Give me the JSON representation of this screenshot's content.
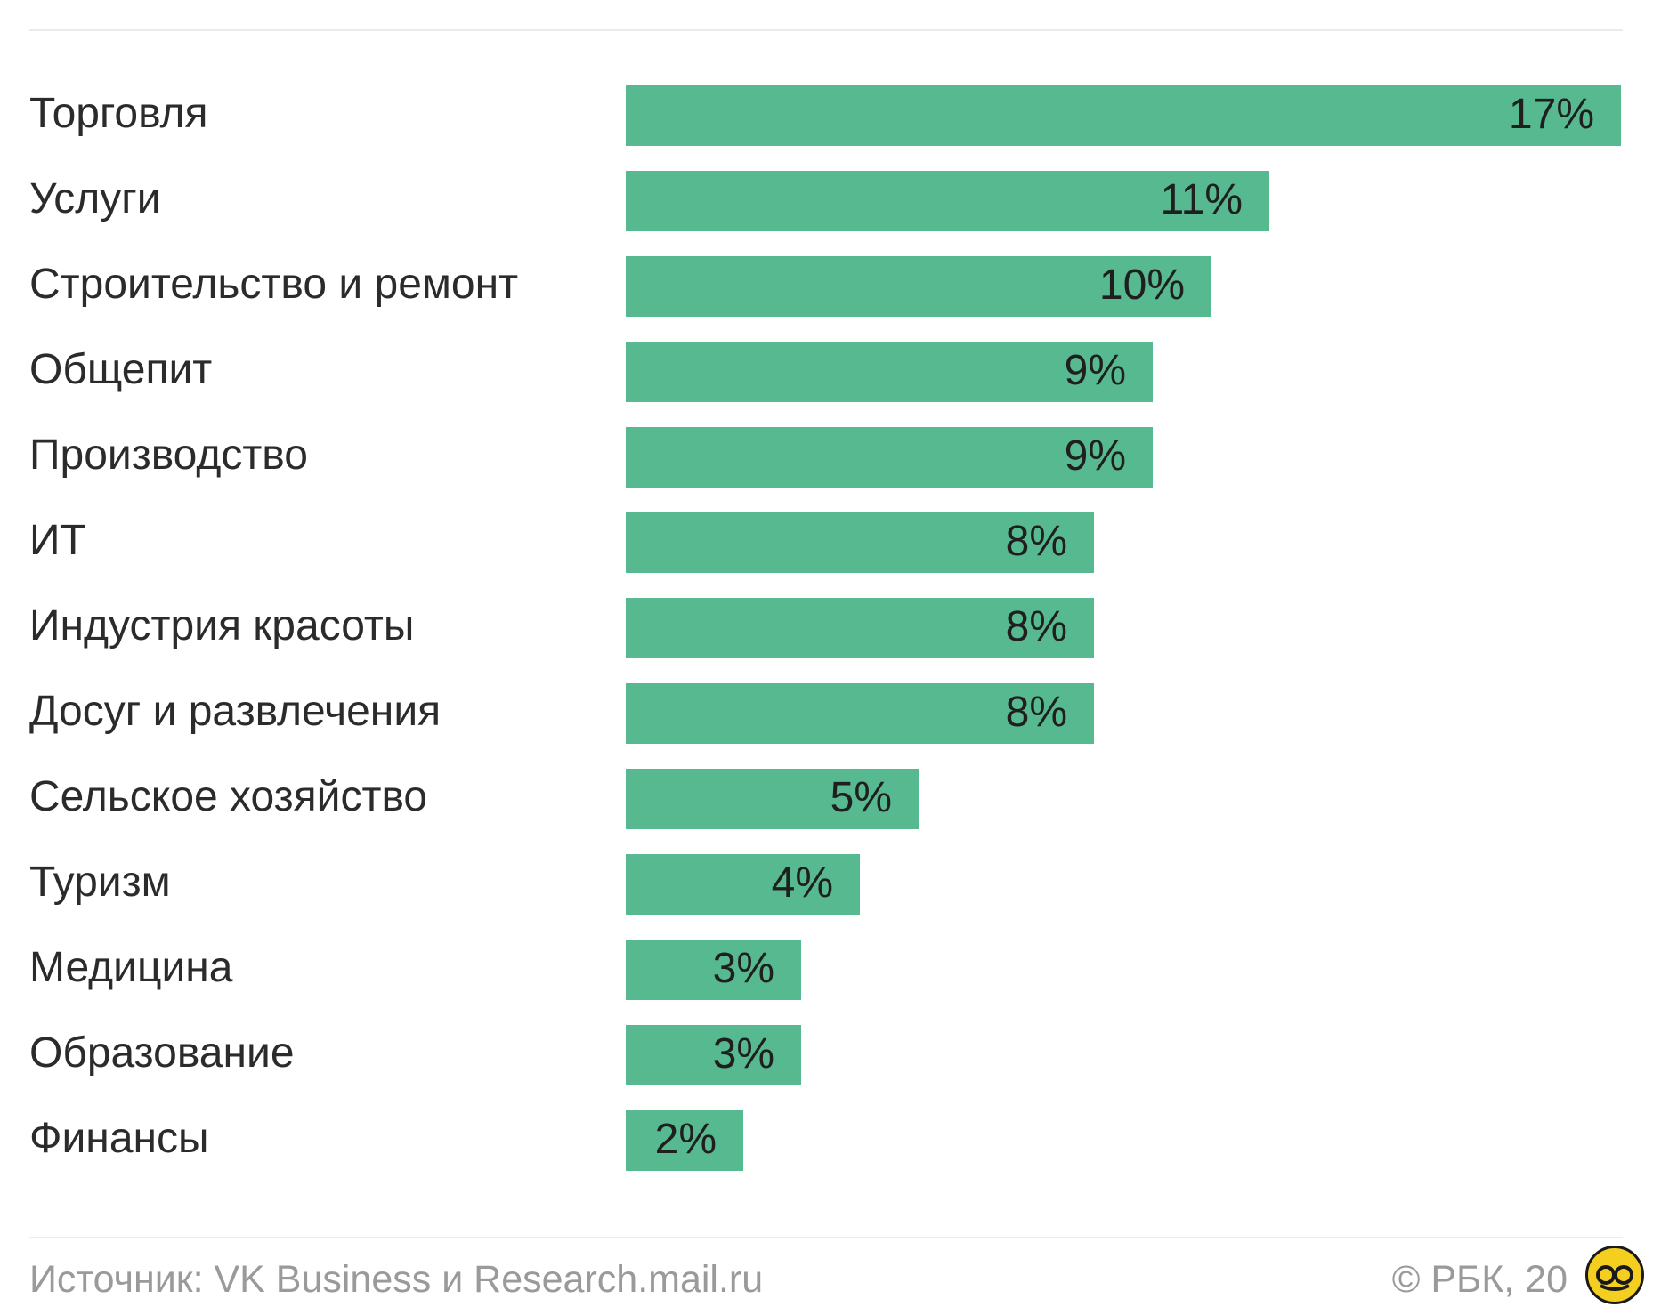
{
  "chart_data": {
    "type": "bar",
    "orientation": "horizontal",
    "categories": [
      "Торговля",
      "Услуги",
      "Строительство и ремонт",
      "Общепит",
      "Производство",
      "ИТ",
      "Индустрия красоты",
      "Досуг и развлечения",
      "Сельское хозяйство",
      "Туризм",
      "Медицина",
      "Образование",
      "Финансы"
    ],
    "values": [
      17,
      11,
      10,
      9,
      9,
      8,
      8,
      8,
      5,
      4,
      3,
      3,
      2
    ],
    "value_labels": [
      "17%",
      "11%",
      "10%",
      "9%",
      "9%",
      "8%",
      "8%",
      "8%",
      "5%",
      "4%",
      "3%",
      "3%",
      "2%"
    ],
    "unit": "%",
    "xlim": [
      0,
      17
    ],
    "grid": false,
    "bar_color": "#56b98f"
  },
  "footer": {
    "source": "Источник: VK Business и Research.mail.ru",
    "copyright": "© РБК, 20"
  },
  "badge": {
    "icon": "logo-badge-icon",
    "color": "#f5cf1f"
  }
}
